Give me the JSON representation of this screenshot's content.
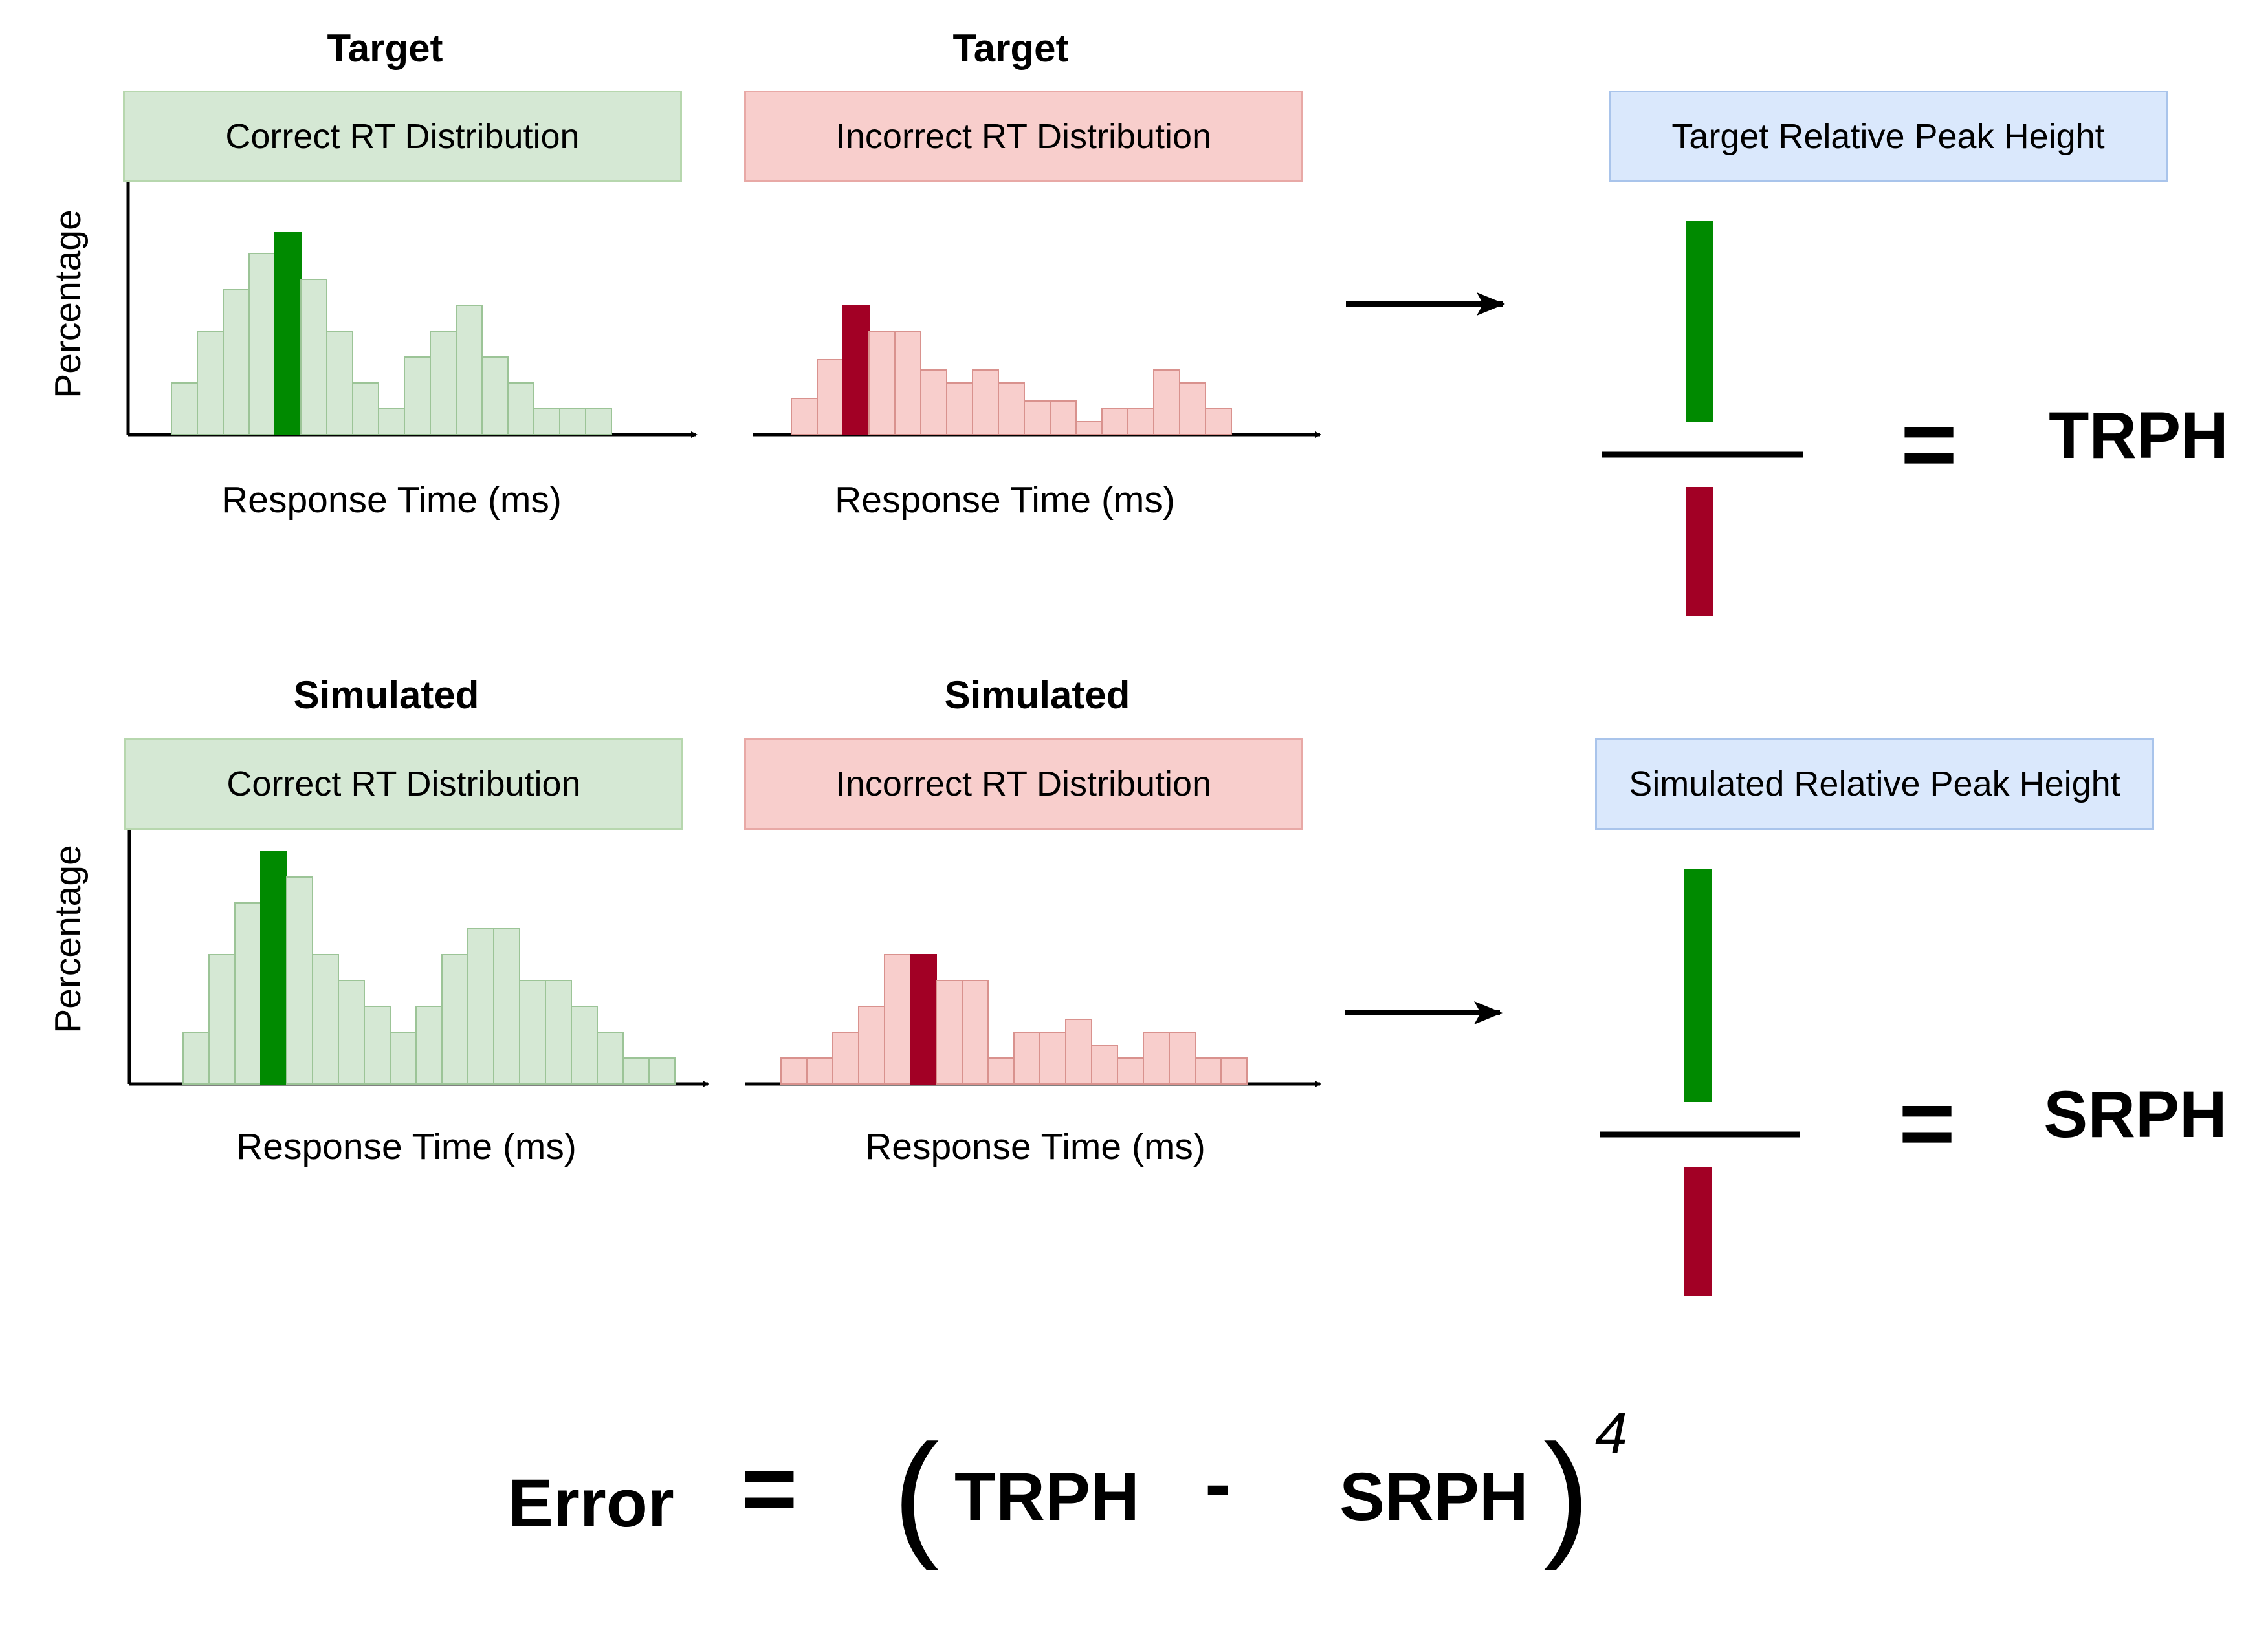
{
  "rows": [
    {
      "correct": {
        "title": "Target",
        "box_label": "Correct RT Distribution",
        "xlabel": "Response Time (ms)"
      },
      "incorrect": {
        "title": "Target",
        "box_label": "Incorrect RT Distribution",
        "xlabel": "Response Time (ms)"
      },
      "ylabel": "Percentage",
      "peak_box_label": "Target Relative Peak Height",
      "result_label": "TRPH",
      "equals": "="
    },
    {
      "correct": {
        "title": "Simulated",
        "box_label": "Correct RT Distribution",
        "xlabel": "Response Time (ms)"
      },
      "incorrect": {
        "title": "Simulated",
        "box_label": "Incorrect RT Distribution",
        "xlabel": "Response Time (ms)"
      },
      "ylabel": "Percentage",
      "peak_box_label": "Simulated Relative Peak Height",
      "result_label": "SRPH",
      "equals": "="
    }
  ],
  "error_formula": {
    "lhs": "Error",
    "equals": "=",
    "open_paren": "(",
    "term1": "TRPH",
    "minus": "-",
    "term2": "SRPH",
    "close_paren": ")",
    "exponent": "4"
  },
  "colors": {
    "correct_fill": "#d5e8d4",
    "correct_stroke": "#9cc497",
    "correct_peak": "#008a00",
    "incorrect_fill": "#f8cecc",
    "incorrect_stroke": "#d9928e",
    "incorrect_peak": "#a20025",
    "blue_box": "#dae8fc"
  },
  "chart_data": [
    {
      "type": "bar",
      "name": "target-correct",
      "values": [
        2,
        4,
        5.6,
        7,
        7.8,
        6,
        4,
        2,
        1,
        3,
        4,
        5,
        3,
        2,
        1,
        1,
        1
      ],
      "peak_index": 4
    },
    {
      "type": "bar",
      "name": "target-incorrect",
      "values": [
        1.4,
        2.9,
        5,
        4,
        4,
        2.5,
        2,
        2.5,
        2,
        1.3,
        1.3,
        0.5,
        1,
        1,
        2.5,
        2,
        1
      ],
      "peak_index": 2
    },
    {
      "type": "bar",
      "name": "simulated-correct",
      "values": [
        2,
        5,
        7,
        9,
        8,
        5,
        4,
        3,
        2,
        3,
        5,
        6,
        6,
        4,
        4,
        3,
        2,
        1,
        1
      ],
      "peak_index": 3
    },
    {
      "type": "bar",
      "name": "simulated-incorrect",
      "values": [
        1,
        1,
        2,
        3,
        5,
        5,
        4,
        4,
        1,
        2,
        2,
        2.5,
        1.5,
        1,
        2,
        2,
        1,
        1
      ],
      "peak_index": 5
    },
    {
      "type": "bar",
      "name": "target-peak-ratio",
      "values": [
        7.8,
        5
      ],
      "series": [
        "correct peak",
        "incorrect peak"
      ]
    },
    {
      "type": "bar",
      "name": "simulated-peak-ratio",
      "values": [
        9,
        5
      ],
      "series": [
        "correct peak",
        "incorrect peak"
      ]
    }
  ]
}
